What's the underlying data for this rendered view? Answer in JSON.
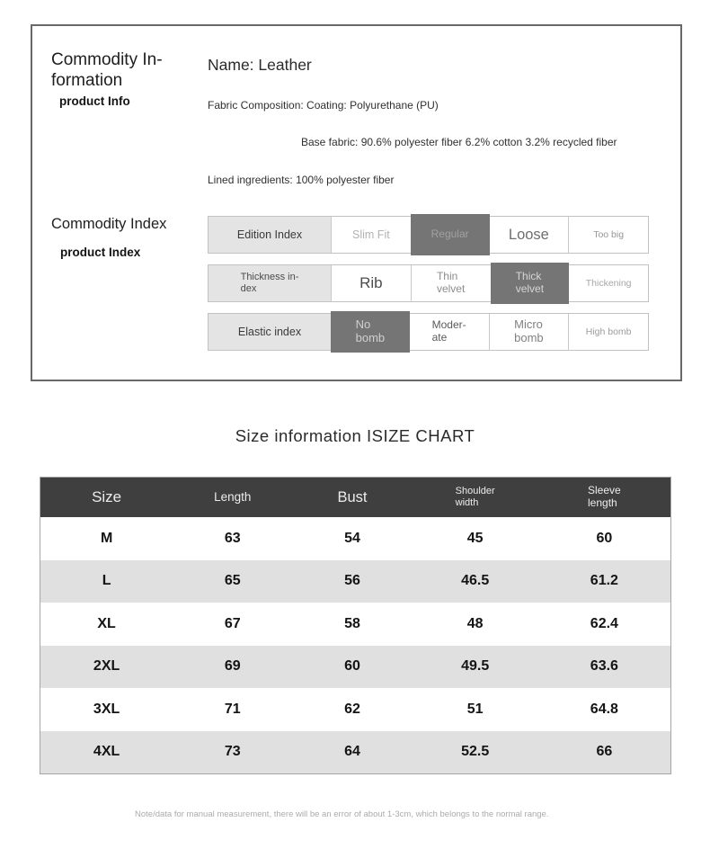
{
  "colors": {
    "table_header_bg": "#3f3f3f",
    "selected_option_bg": "#757575",
    "row_alt_bg": "#e0e0e0",
    "label_cell_bg": "#e4e4e4"
  },
  "commodity_info": {
    "title": "Commodity In-formation",
    "subtitle": "product Info",
    "name_line": "Name: Leather",
    "fabric_line": "Fabric Composition: Coating: Polyurethane (PU)",
    "base_fabric_line": "Base fabric: 90.6% polyester fiber 6.2% cotton 3.2% recycled fiber",
    "lined_line": "Lined ingredients: 100% polyester fiber"
  },
  "commodity_index": {
    "title": "Commodity Index",
    "subtitle": "product Index",
    "rows": [
      {
        "label": "Edition Index",
        "options": [
          {
            "label": "Slim Fit",
            "selected": false
          },
          {
            "label": "Regular",
            "selected": true
          },
          {
            "label": "Loose",
            "selected": false
          },
          {
            "label": "Too big",
            "selected": false
          }
        ]
      },
      {
        "label": "Thickness in-\ndex",
        "options": [
          {
            "label": "Rib",
            "selected": false
          },
          {
            "label": "Thin\nvelvet",
            "selected": false
          },
          {
            "label": "Thick\nvelvet",
            "selected": true
          },
          {
            "label": "Thickening",
            "selected": false
          }
        ]
      },
      {
        "label": "Elastic index",
        "options": [
          {
            "label": "No\nbomb",
            "selected": true
          },
          {
            "label": "Moder-\nate",
            "selected": false
          },
          {
            "label": "Micro\nbomb",
            "selected": false
          },
          {
            "label": "High bomb",
            "selected": false
          }
        ]
      }
    ]
  },
  "size_chart": {
    "title": "Size information ISIZE CHART",
    "columns": [
      "Size",
      "Length",
      "Bust",
      "Shoulder\nwidth",
      "Sleeve\nlength"
    ],
    "rows": [
      [
        "M",
        "63",
        "54",
        "45",
        "60"
      ],
      [
        "L",
        "65",
        "56",
        "46.5",
        "61.2"
      ],
      [
        "XL",
        "67",
        "58",
        "48",
        "62.4"
      ],
      [
        "2XL",
        "69",
        "60",
        "49.5",
        "63.6"
      ],
      [
        "3XL",
        "71",
        "62",
        "51",
        "64.8"
      ],
      [
        "4XL",
        "73",
        "64",
        "52.5",
        "66"
      ]
    ],
    "note": "Note/data for manual measurement, there will be an error of about 1-3cm, which belongs to the normal range."
  }
}
